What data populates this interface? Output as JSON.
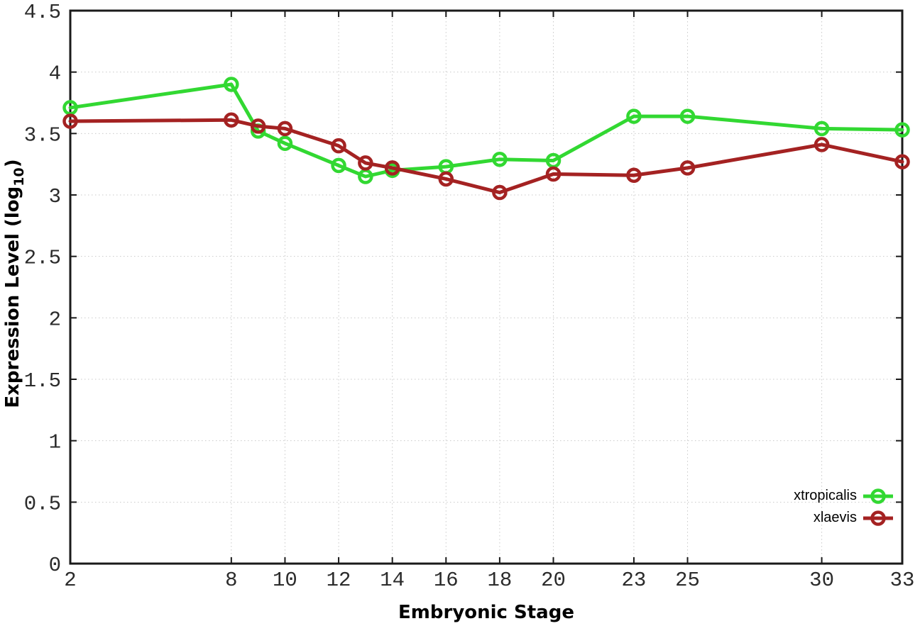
{
  "chart_data": {
    "type": "line",
    "title": "",
    "xlabel": "Embryonic Stage",
    "ylabel": {
      "prefix": "Expression Level (log",
      "sub": "10",
      "suffix": ")"
    },
    "x": [
      2,
      8,
      9,
      10,
      12,
      13,
      14,
      16,
      18,
      20,
      23,
      25,
      30,
      33
    ],
    "xticks": [
      2,
      8,
      10,
      12,
      14,
      16,
      18,
      20,
      23,
      25,
      30,
      33
    ],
    "yticks": [
      "0",
      "0.5",
      "1",
      "1.5",
      "2",
      "2.5",
      "3",
      "3.5",
      "4",
      "4.5"
    ],
    "ytick_values": [
      0,
      0.5,
      1,
      1.5,
      2,
      2.5,
      3,
      3.5,
      4,
      4.5
    ],
    "xlim": [
      2,
      33
    ],
    "ylim": [
      0,
      4.5
    ],
    "grid": true,
    "legend_position": "bottom-right",
    "series": [
      {
        "name": "xtropicalis",
        "color": "#32d832",
        "marker": "open-circle",
        "values": [
          3.71,
          3.9,
          3.52,
          3.42,
          3.24,
          3.15,
          3.2,
          3.23,
          3.29,
          3.28,
          3.64,
          3.64,
          3.54,
          3.53
        ]
      },
      {
        "name": "xlaevis",
        "color": "#a42222",
        "marker": "open-circle",
        "values": [
          3.6,
          3.61,
          3.56,
          3.54,
          3.4,
          3.26,
          3.22,
          3.13,
          3.02,
          3.17,
          3.16,
          3.22,
          3.41,
          3.27
        ]
      }
    ],
    "colors": {
      "axis": "#1a1a1a",
      "grid": "#c9c9c9",
      "tick_label": "#2b2b2b",
      "background": "#ffffff"
    }
  }
}
